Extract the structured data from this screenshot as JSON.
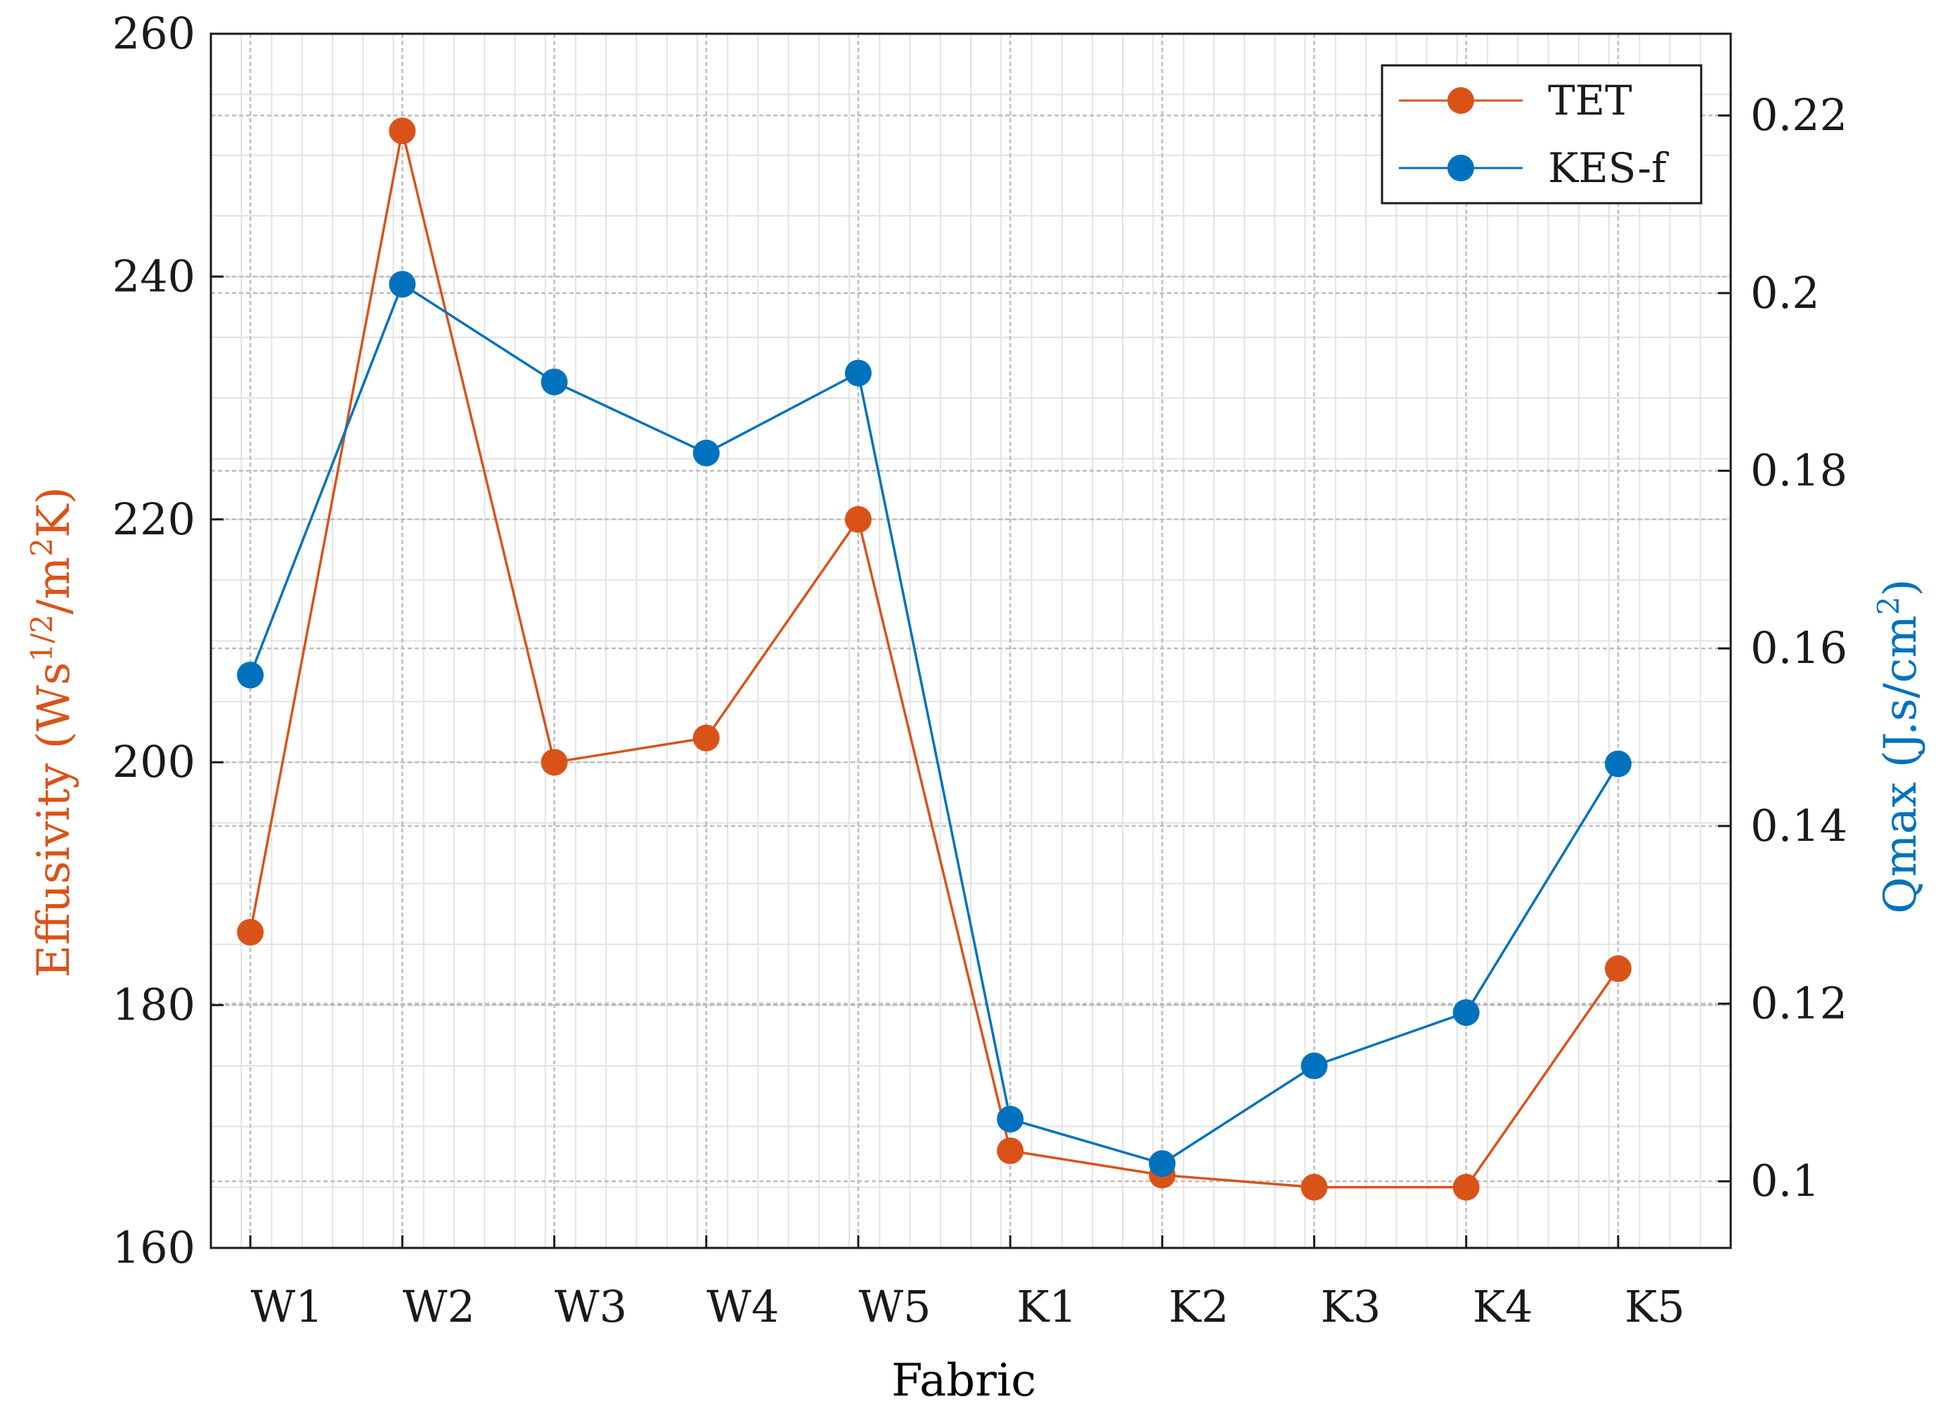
{
  "colors": {
    "tet": "#d95319",
    "kes": "#0072bd",
    "axis": "#1a1a1a",
    "grid": "#bdbdbd",
    "grid_minor": "#e3e3e3"
  },
  "chart_data": {
    "type": "line",
    "title": "",
    "xlabel": "Fabric",
    "ylabel_left": "Effusivity (Ws1/2/m2K)",
    "ylabel_right": "Qmax (J.s/cm2)",
    "categories": [
      "W1",
      "W2",
      "W3",
      "W4",
      "W5",
      "K1",
      "K2",
      "K3",
      "K4",
      "K5"
    ],
    "ylim_left": [
      160,
      260
    ],
    "ylim_right": [
      0.0925,
      0.2292
    ],
    "yticks_left": [
      "160",
      "180",
      "200",
      "220",
      "240",
      "260"
    ],
    "yticks_right": [
      "0.1",
      "0.12",
      "0.14",
      "0.16",
      "0.18",
      "0.2",
      "0.22"
    ],
    "legend_position": "top-right",
    "grid": true,
    "series": [
      {
        "name": "TET",
        "axis": "left",
        "color_key": "tet",
        "values": [
          186,
          252,
          200,
          202,
          220,
          168,
          166,
          165,
          165,
          183
        ]
      },
      {
        "name": "KES-f",
        "axis": "right",
        "color_key": "kes",
        "values": [
          0.157,
          0.201,
          0.19,
          0.182,
          0.191,
          0.107,
          0.102,
          0.113,
          0.119,
          0.147
        ]
      }
    ]
  }
}
